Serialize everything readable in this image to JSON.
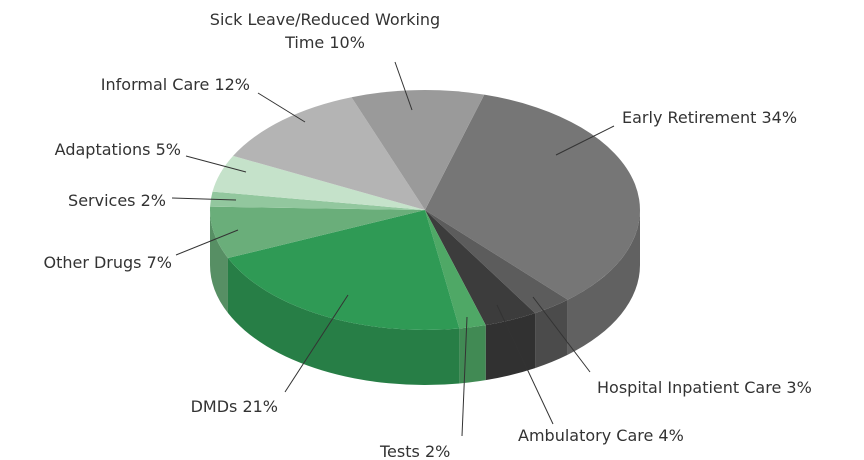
{
  "chart_data": {
    "type": "pie3d",
    "categories": [
      "Early Retirement",
      "Hospital Inpatient Care",
      "Ambulatory Care",
      "Tests",
      "DMDs",
      "Other Drugs",
      "Services",
      "Adaptations",
      "Informal Care",
      "Sick Leave/Reduced Working Time"
    ],
    "values": [
      34,
      3,
      4,
      2,
      21,
      7,
      2,
      5,
      12,
      10
    ],
    "value_labels": [
      "34%",
      "3%",
      "4%",
      "2%",
      "21%",
      "7%",
      "2%",
      "5%",
      "12%",
      "10%"
    ],
    "colors": [
      "#767676",
      "#5c5c5c",
      "#3c3c3c",
      "#4fa866",
      "#2f9a55",
      "#6aae7a",
      "#92c79e",
      "#c5e2ca",
      "#b4b4b4",
      "#9a9a9a"
    ]
  }
}
